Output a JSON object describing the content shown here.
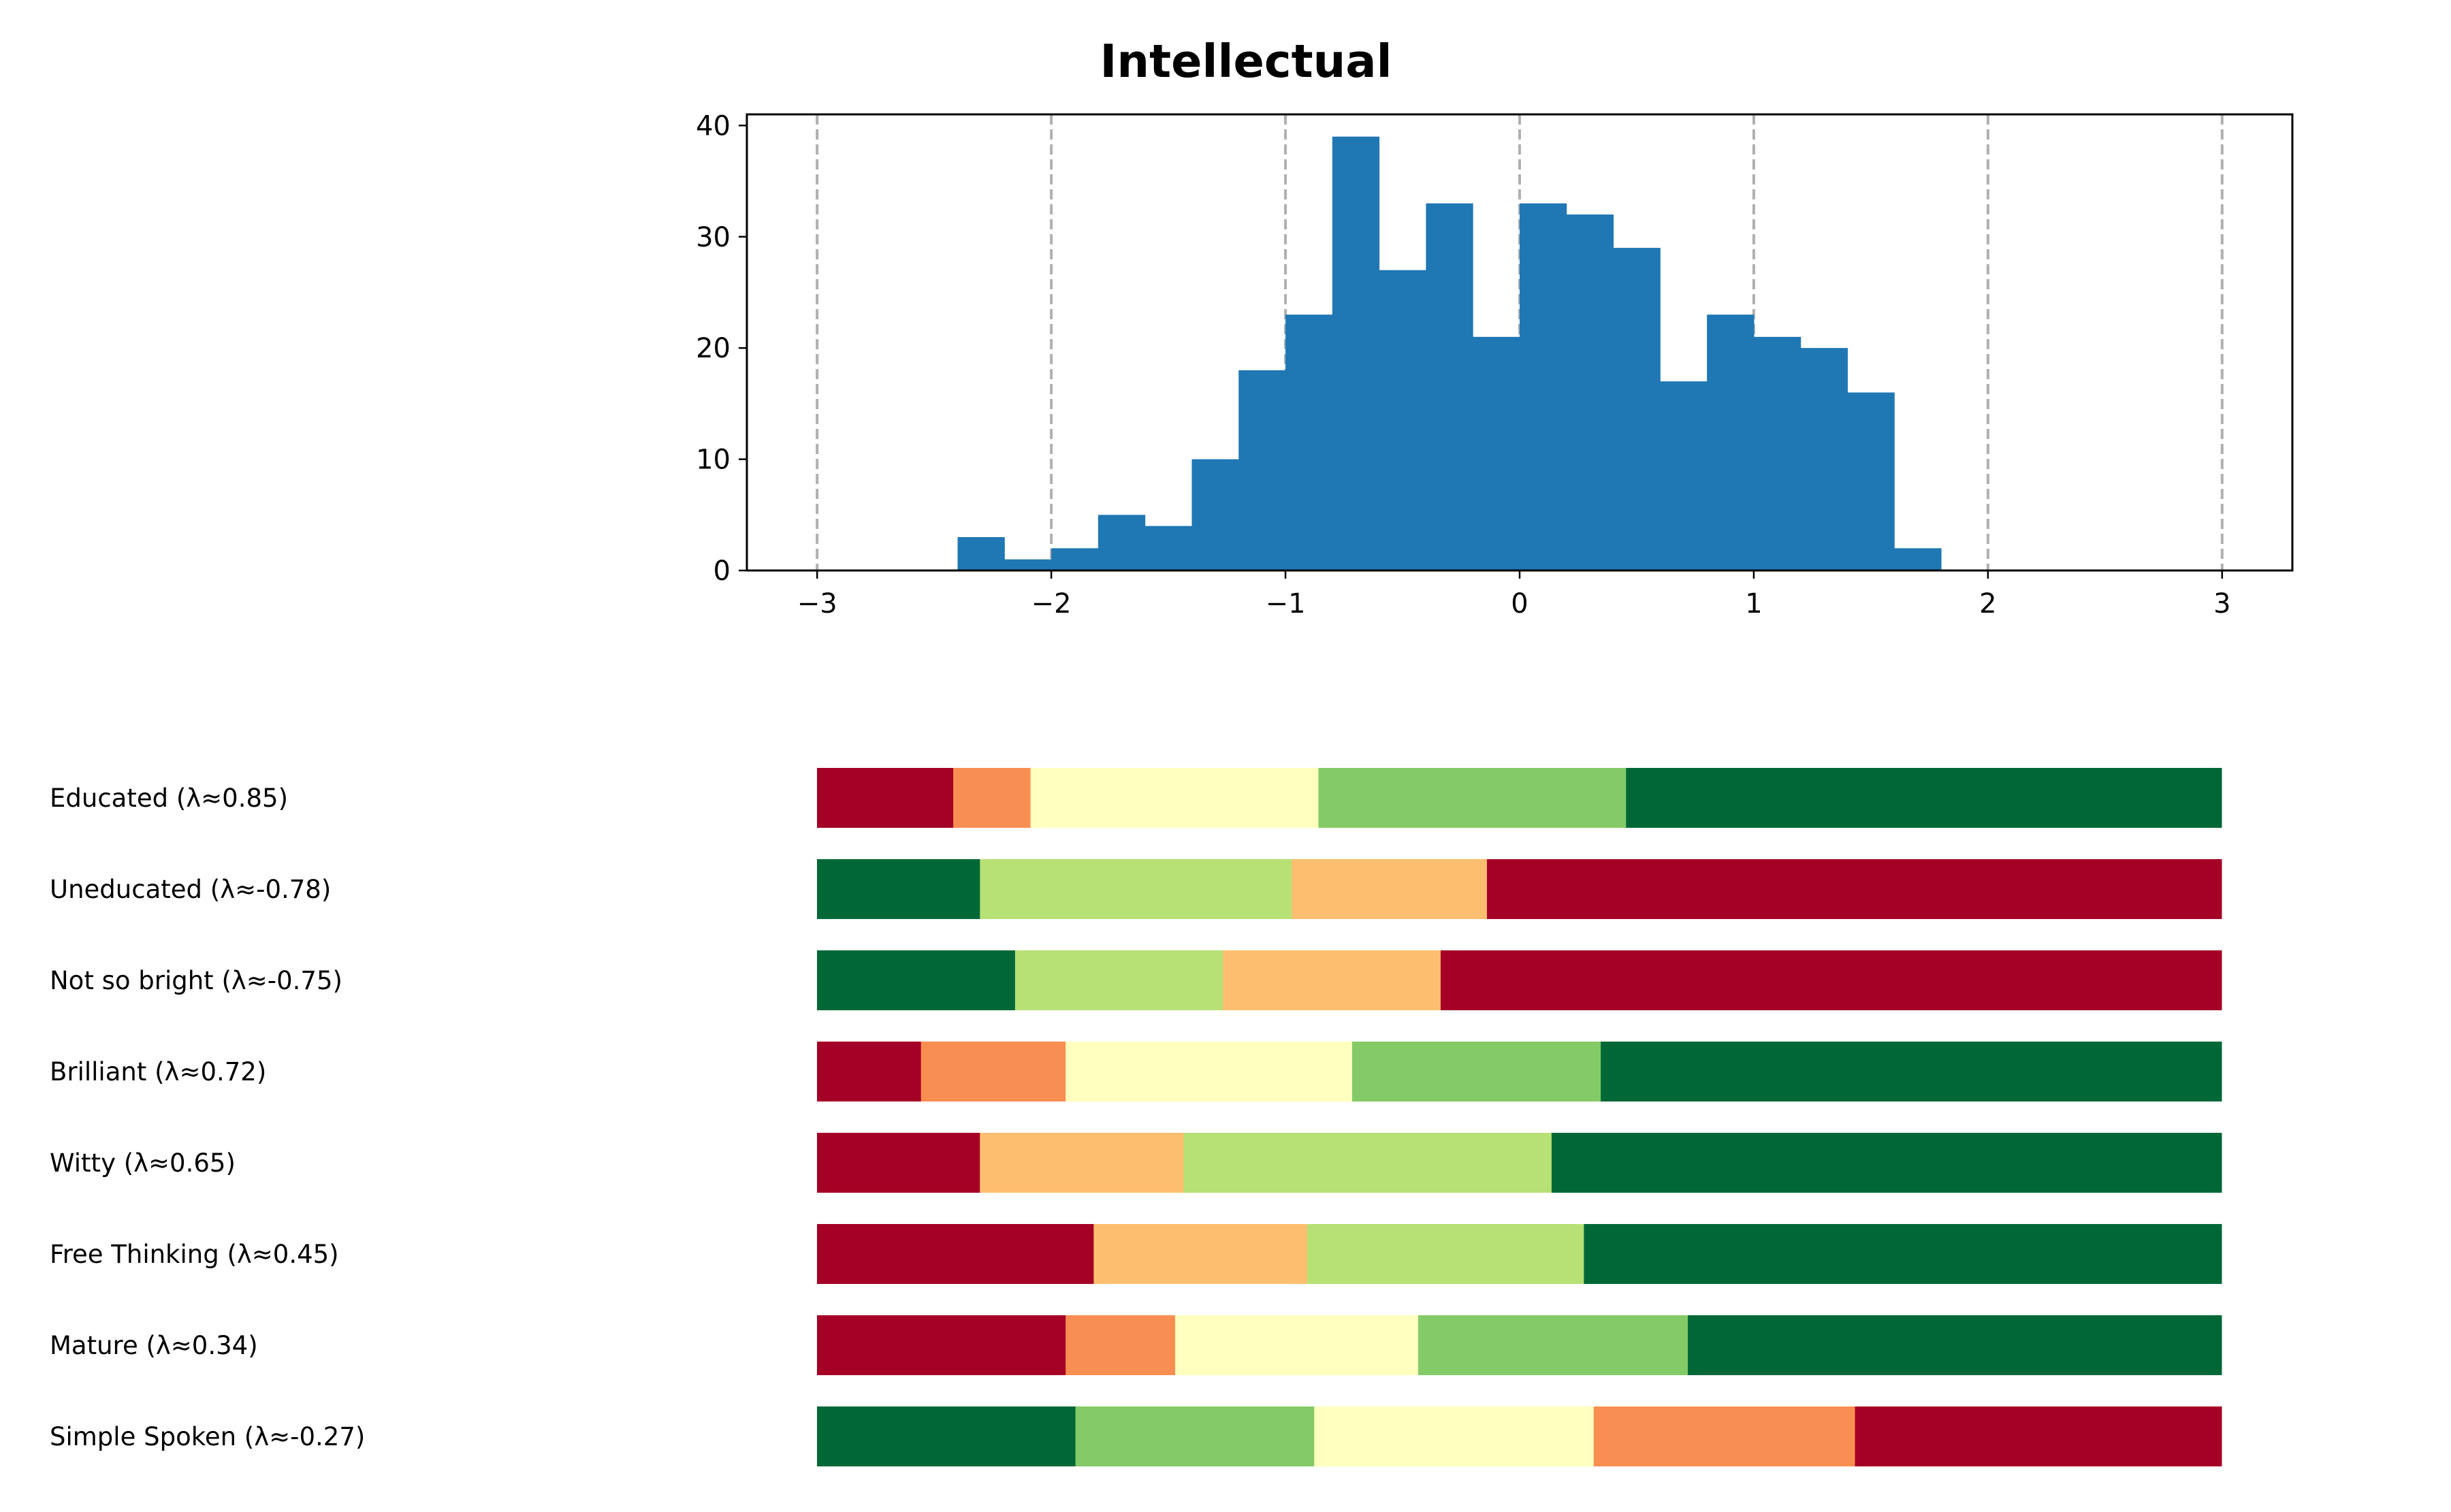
{
  "colors": {
    "hist_bar": "#1f77b4",
    "grid": "#b0b0b0",
    "strongly_negative": "#a50026",
    "negative": "#f98e52",
    "negative_light": "#fdbf6f",
    "neutral": "#ffffbf",
    "positive_light": "#b7e075",
    "positive": "#84ca66",
    "strongly_positive": "#006837"
  },
  "chart_data": [
    {
      "type": "bar",
      "subtype": "histogram",
      "title": "Intellectual",
      "xlabel": "",
      "ylabel": "",
      "xlim": [
        -3.3,
        3.3
      ],
      "ylim": [
        0,
        41
      ],
      "x_ticks": [
        -3,
        -2,
        -1,
        0,
        1,
        2,
        3
      ],
      "x_tick_labels": [
        "−3",
        "−2",
        "−1",
        "0",
        "1",
        "2",
        "3"
      ],
      "y_ticks": [
        0,
        10,
        20,
        30,
        40
      ],
      "y_tick_labels": [
        "0",
        "10",
        "20",
        "30",
        "40"
      ],
      "grid": "vertical dashed at x ticks",
      "bin_edges": [
        -2.4,
        -2.2,
        -2.0,
        -1.8,
        -1.6,
        -1.4,
        -1.2,
        -1.0,
        -0.8,
        -0.6,
        -0.4,
        -0.2,
        0.0,
        0.2,
        0.4,
        0.6,
        0.8,
        1.0,
        1.2,
        1.4,
        1.6,
        1.8
      ],
      "values": [
        3,
        1,
        2,
        5,
        4,
        10,
        18,
        23,
        39,
        27,
        33,
        21,
        33,
        32,
        29,
        17,
        23,
        21,
        20,
        16,
        2
      ]
    },
    {
      "type": "bar",
      "subtype": "horizontal stacked 100%",
      "xlim": [
        0,
        1
      ],
      "rows": [
        {
          "label": "Educated (λ≈0.85)",
          "segments": [
            {
              "value": 0.097,
              "color": "#a50026"
            },
            {
              "value": 0.055,
              "color": "#f98e52"
            },
            {
              "value": 0.205,
              "color": "#ffffbf"
            },
            {
              "value": 0.219,
              "color": "#84ca66"
            },
            {
              "value": 0.424,
              "color": "#006837"
            }
          ]
        },
        {
          "label": "Uneducated (λ≈-0.78)",
          "segments": [
            {
              "value": 0.116,
              "color": "#006837"
            },
            {
              "value": 0.222,
              "color": "#b7e075"
            },
            {
              "value": 0.139,
              "color": "#fdbf6f"
            },
            {
              "value": 0.523,
              "color": "#a50026"
            }
          ]
        },
        {
          "label": "Not so bright (λ≈-0.75)",
          "segments": [
            {
              "value": 0.141,
              "color": "#006837"
            },
            {
              "value": 0.148,
              "color": "#b7e075"
            },
            {
              "value": 0.155,
              "color": "#fdbf6f"
            },
            {
              "value": 0.556,
              "color": "#a50026"
            }
          ]
        },
        {
          "label": "Brilliant (λ≈0.72)",
          "segments": [
            {
              "value": 0.074,
              "color": "#a50026"
            },
            {
              "value": 0.103,
              "color": "#f98e52"
            },
            {
              "value": 0.204,
              "color": "#ffffbf"
            },
            {
              "value": 0.177,
              "color": "#84ca66"
            },
            {
              "value": 0.442,
              "color": "#006837"
            }
          ]
        },
        {
          "label": "Witty (λ≈0.65)",
          "segments": [
            {
              "value": 0.116,
              "color": "#a50026"
            },
            {
              "value": 0.145,
              "color": "#fdbf6f"
            },
            {
              "value": 0.262,
              "color": "#b7e075"
            },
            {
              "value": 0.477,
              "color": "#006837"
            }
          ]
        },
        {
          "label": "Free Thinking (λ≈0.45)",
          "segments": [
            {
              "value": 0.197,
              "color": "#a50026"
            },
            {
              "value": 0.152,
              "color": "#fdbf6f"
            },
            {
              "value": 0.197,
              "color": "#b7e075"
            },
            {
              "value": 0.454,
              "color": "#006837"
            }
          ]
        },
        {
          "label": "Mature (λ≈0.34)",
          "segments": [
            {
              "value": 0.177,
              "color": "#a50026"
            },
            {
              "value": 0.078,
              "color": "#f98e52"
            },
            {
              "value": 0.173,
              "color": "#ffffbf"
            },
            {
              "value": 0.192,
              "color": "#84ca66"
            },
            {
              "value": 0.38,
              "color": "#006837"
            }
          ]
        },
        {
          "label": "Simple Spoken (λ≈-0.27)",
          "segments": [
            {
              "value": 0.184,
              "color": "#006837"
            },
            {
              "value": 0.17,
              "color": "#84ca66"
            },
            {
              "value": 0.199,
              "color": "#ffffbf"
            },
            {
              "value": 0.186,
              "color": "#f98e52"
            },
            {
              "value": 0.261,
              "color": "#a50026"
            }
          ]
        }
      ]
    }
  ]
}
